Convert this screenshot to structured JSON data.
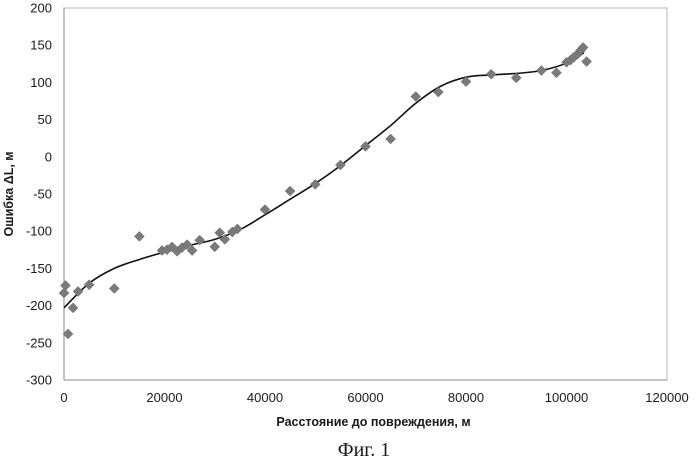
{
  "chart_data": {
    "type": "scatter",
    "title": "",
    "xlabel": "Расстояние до повреждения, м",
    "ylabel": "Ошибка ΔL, м",
    "xlim": [
      0,
      120000
    ],
    "ylim": [
      -300,
      200
    ],
    "xticks": [
      "0",
      "20000",
      "40000",
      "60000",
      "80000",
      "100000",
      "120000"
    ],
    "yticks": [
      "-300",
      "-250",
      "-200",
      "-150",
      "-100",
      "-50",
      "0",
      "50",
      "100",
      "150",
      "200"
    ],
    "grid": "none",
    "legend": "none",
    "marker_color": "#7a7a7a",
    "line_color": "#111111",
    "series": [
      {
        "marker": "diamond",
        "points": [
          [
            0,
            -183
          ],
          [
            300,
            -173
          ],
          [
            800,
            -238
          ],
          [
            1800,
            -203
          ],
          [
            2800,
            -181
          ],
          [
            5000,
            -172
          ],
          [
            10000,
            -177
          ],
          [
            15000,
            -107
          ],
          [
            19500,
            -126
          ],
          [
            20500,
            -125
          ],
          [
            21500,
            -121
          ],
          [
            22500,
            -127
          ],
          [
            23500,
            -122
          ],
          [
            24500,
            -118
          ],
          [
            25500,
            -126
          ],
          [
            27000,
            -112
          ],
          [
            30000,
            -121
          ],
          [
            31000,
            -102
          ],
          [
            32000,
            -111
          ],
          [
            33500,
            -101
          ],
          [
            34500,
            -97
          ],
          [
            40000,
            -71
          ],
          [
            45000,
            -46
          ],
          [
            50000,
            -37
          ],
          [
            55000,
            -11
          ],
          [
            60000,
            14
          ],
          [
            65000,
            24
          ],
          [
            70000,
            81
          ],
          [
            74500,
            87
          ],
          [
            80000,
            101
          ],
          [
            85000,
            111
          ],
          [
            90000,
            106
          ],
          [
            95000,
            116
          ],
          [
            98000,
            113
          ],
          [
            100000,
            127
          ],
          [
            100800,
            130
          ],
          [
            101500,
            134
          ],
          [
            102200,
            138
          ],
          [
            102800,
            143
          ],
          [
            103300,
            147
          ],
          [
            104000,
            128
          ]
        ]
      },
      {
        "line": "trend",
        "points": [
          [
            0,
            -203
          ],
          [
            5000,
            -170
          ],
          [
            10000,
            -150
          ],
          [
            15000,
            -138
          ],
          [
            20000,
            -128
          ],
          [
            25000,
            -119
          ],
          [
            30000,
            -111
          ],
          [
            35000,
            -98
          ],
          [
            40000,
            -78
          ],
          [
            45000,
            -57
          ],
          [
            50000,
            -36
          ],
          [
            55000,
            -12
          ],
          [
            60000,
            15
          ],
          [
            65000,
            42
          ],
          [
            70000,
            72
          ],
          [
            75000,
            95
          ],
          [
            80000,
            107
          ],
          [
            85000,
            110
          ],
          [
            90000,
            112
          ],
          [
            95000,
            116
          ],
          [
            100000,
            126
          ],
          [
            103500,
            140
          ]
        ]
      }
    ]
  },
  "caption": "Фиг. 1"
}
